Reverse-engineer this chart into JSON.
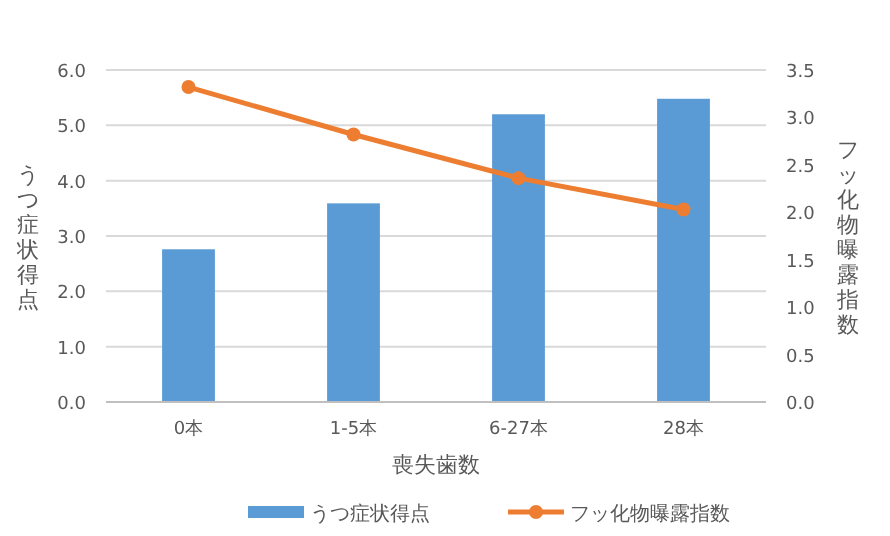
{
  "chart_data": {
    "type": "bar",
    "categories": [
      "0本",
      "1-5本",
      "6-27本",
      "28本"
    ],
    "xlabel": "喪失歯数",
    "ylabel": "うつ症状得点",
    "y2label": "フッ化物曝露指数",
    "series": [
      {
        "name": "うつ症状得点",
        "color": "#5b9bd5",
        "values": [
          2.76,
          3.59,
          5.2,
          5.48
        ]
      },
      {
        "name": "フッ化物曝露指数",
        "type": "line",
        "axis": "y2",
        "color": "#ed7d31",
        "marker": "circle",
        "values": [
          3.32,
          2.82,
          2.36,
          2.03
        ]
      }
    ],
    "ylim": [
      0,
      6
    ],
    "yticks": [
      {
        "value": 0,
        "label": "0.0"
      },
      {
        "value": 1,
        "label": "1.0"
      },
      {
        "value": 2,
        "label": "2.0"
      },
      {
        "value": 3,
        "label": "3.0"
      },
      {
        "value": 4,
        "label": "4.0"
      },
      {
        "value": 5,
        "label": "5.0"
      },
      {
        "value": 6,
        "label": "6.0"
      }
    ],
    "y2lim": [
      0,
      3.5
    ],
    "y2ticks": [
      {
        "value": 0,
        "label": "0.0"
      },
      {
        "value": 0.5,
        "label": "0.5"
      },
      {
        "value": 1,
        "label": "1.0"
      },
      {
        "value": 1.5,
        "label": "1.5"
      },
      {
        "value": 2,
        "label": "2.0"
      },
      {
        "value": 2.5,
        "label": "2.5"
      },
      {
        "value": 3,
        "label": "3.0"
      },
      {
        "value": 3.5,
        "label": "3.5"
      }
    ],
    "grid": "y",
    "legend": "bottom"
  }
}
